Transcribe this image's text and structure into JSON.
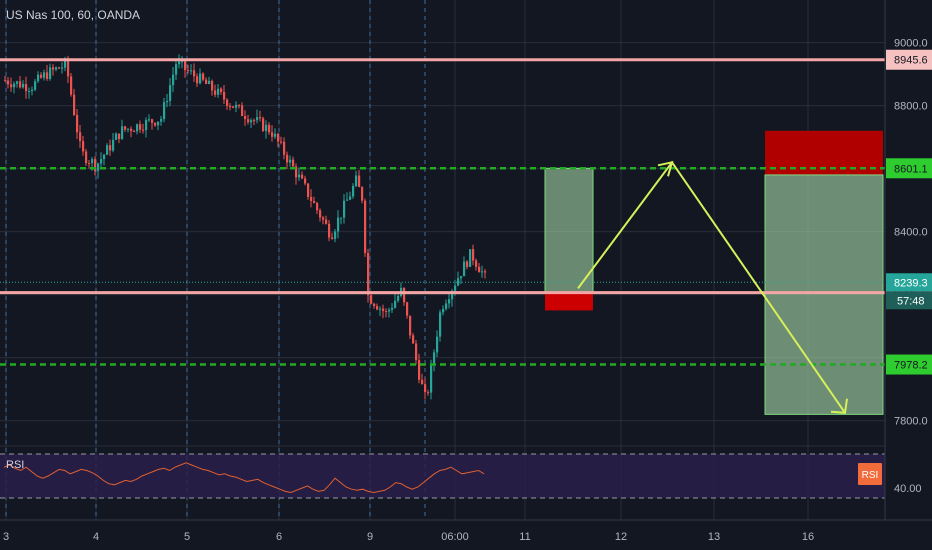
{
  "header": {
    "title": "US Nas 100, 60, OANDA"
  },
  "rsi": {
    "label": "RSI",
    "badge": "RSI",
    "level_label": "40.00"
  },
  "colors": {
    "background": "#131722",
    "up": "#26a69a",
    "down": "#ef5350",
    "resistance": "#f4a6a6",
    "dashed_level": "#22aa22",
    "stop": "#cc0000",
    "target": "#a5d6a7",
    "arrow": "#d4f05a",
    "rsi_line": "#e06030"
  },
  "chart_data": {
    "type": "candlestick",
    "symbol": "US Nas 100",
    "interval": "60",
    "source": "OANDA",
    "ylim": [
      7745,
      9040
    ],
    "y_ticks": [
      "9000.0",
      "8800.0",
      "8400.0",
      "7800.0"
    ],
    "x_ticks": [
      "3",
      "4",
      "5",
      "6",
      "9",
      "06:00",
      "11",
      "12",
      "13",
      "16"
    ],
    "levels": [
      {
        "name": "resistance-upper",
        "value": 8945.6,
        "label": "8945.6",
        "style": "solid"
      },
      {
        "name": "target-upper",
        "value": 8601.1,
        "label": "8601.1",
        "style": "dashed"
      },
      {
        "name": "support",
        "value": 8206.5,
        "label": "8206.5",
        "style": "solid"
      },
      {
        "name": "target-lower",
        "value": 7978.2,
        "label": "7978.2",
        "style": "dashed"
      }
    ],
    "current_price": {
      "value": 8239.3,
      "label": "8239.3",
      "countdown": "57:48"
    },
    "long_position": {
      "entry": 8206.5,
      "target": 8601.1,
      "stop": 8150
    },
    "short_position": {
      "entry": 8580,
      "target": 7820,
      "stop": 8720
    },
    "rsi_values": [
      58,
      60,
      57,
      55,
      58,
      54,
      50,
      48,
      50,
      53,
      56,
      55,
      52,
      54,
      56,
      55,
      53,
      50,
      46,
      43,
      42,
      44,
      46,
      45,
      47,
      50,
      52,
      54,
      56,
      57,
      55,
      58,
      60,
      62,
      60,
      58,
      56,
      55,
      53,
      51,
      52,
      50,
      49,
      47,
      45,
      46,
      47,
      44,
      42,
      40,
      38,
      36,
      35,
      37,
      39,
      41,
      38,
      36,
      37,
      42,
      48,
      44,
      40,
      38,
      37,
      38,
      36,
      35,
      36,
      37,
      40,
      44,
      43,
      40,
      38,
      40,
      44,
      48,
      52,
      55,
      56,
      58,
      55,
      52,
      53,
      54,
      55,
      52
    ]
  }
}
